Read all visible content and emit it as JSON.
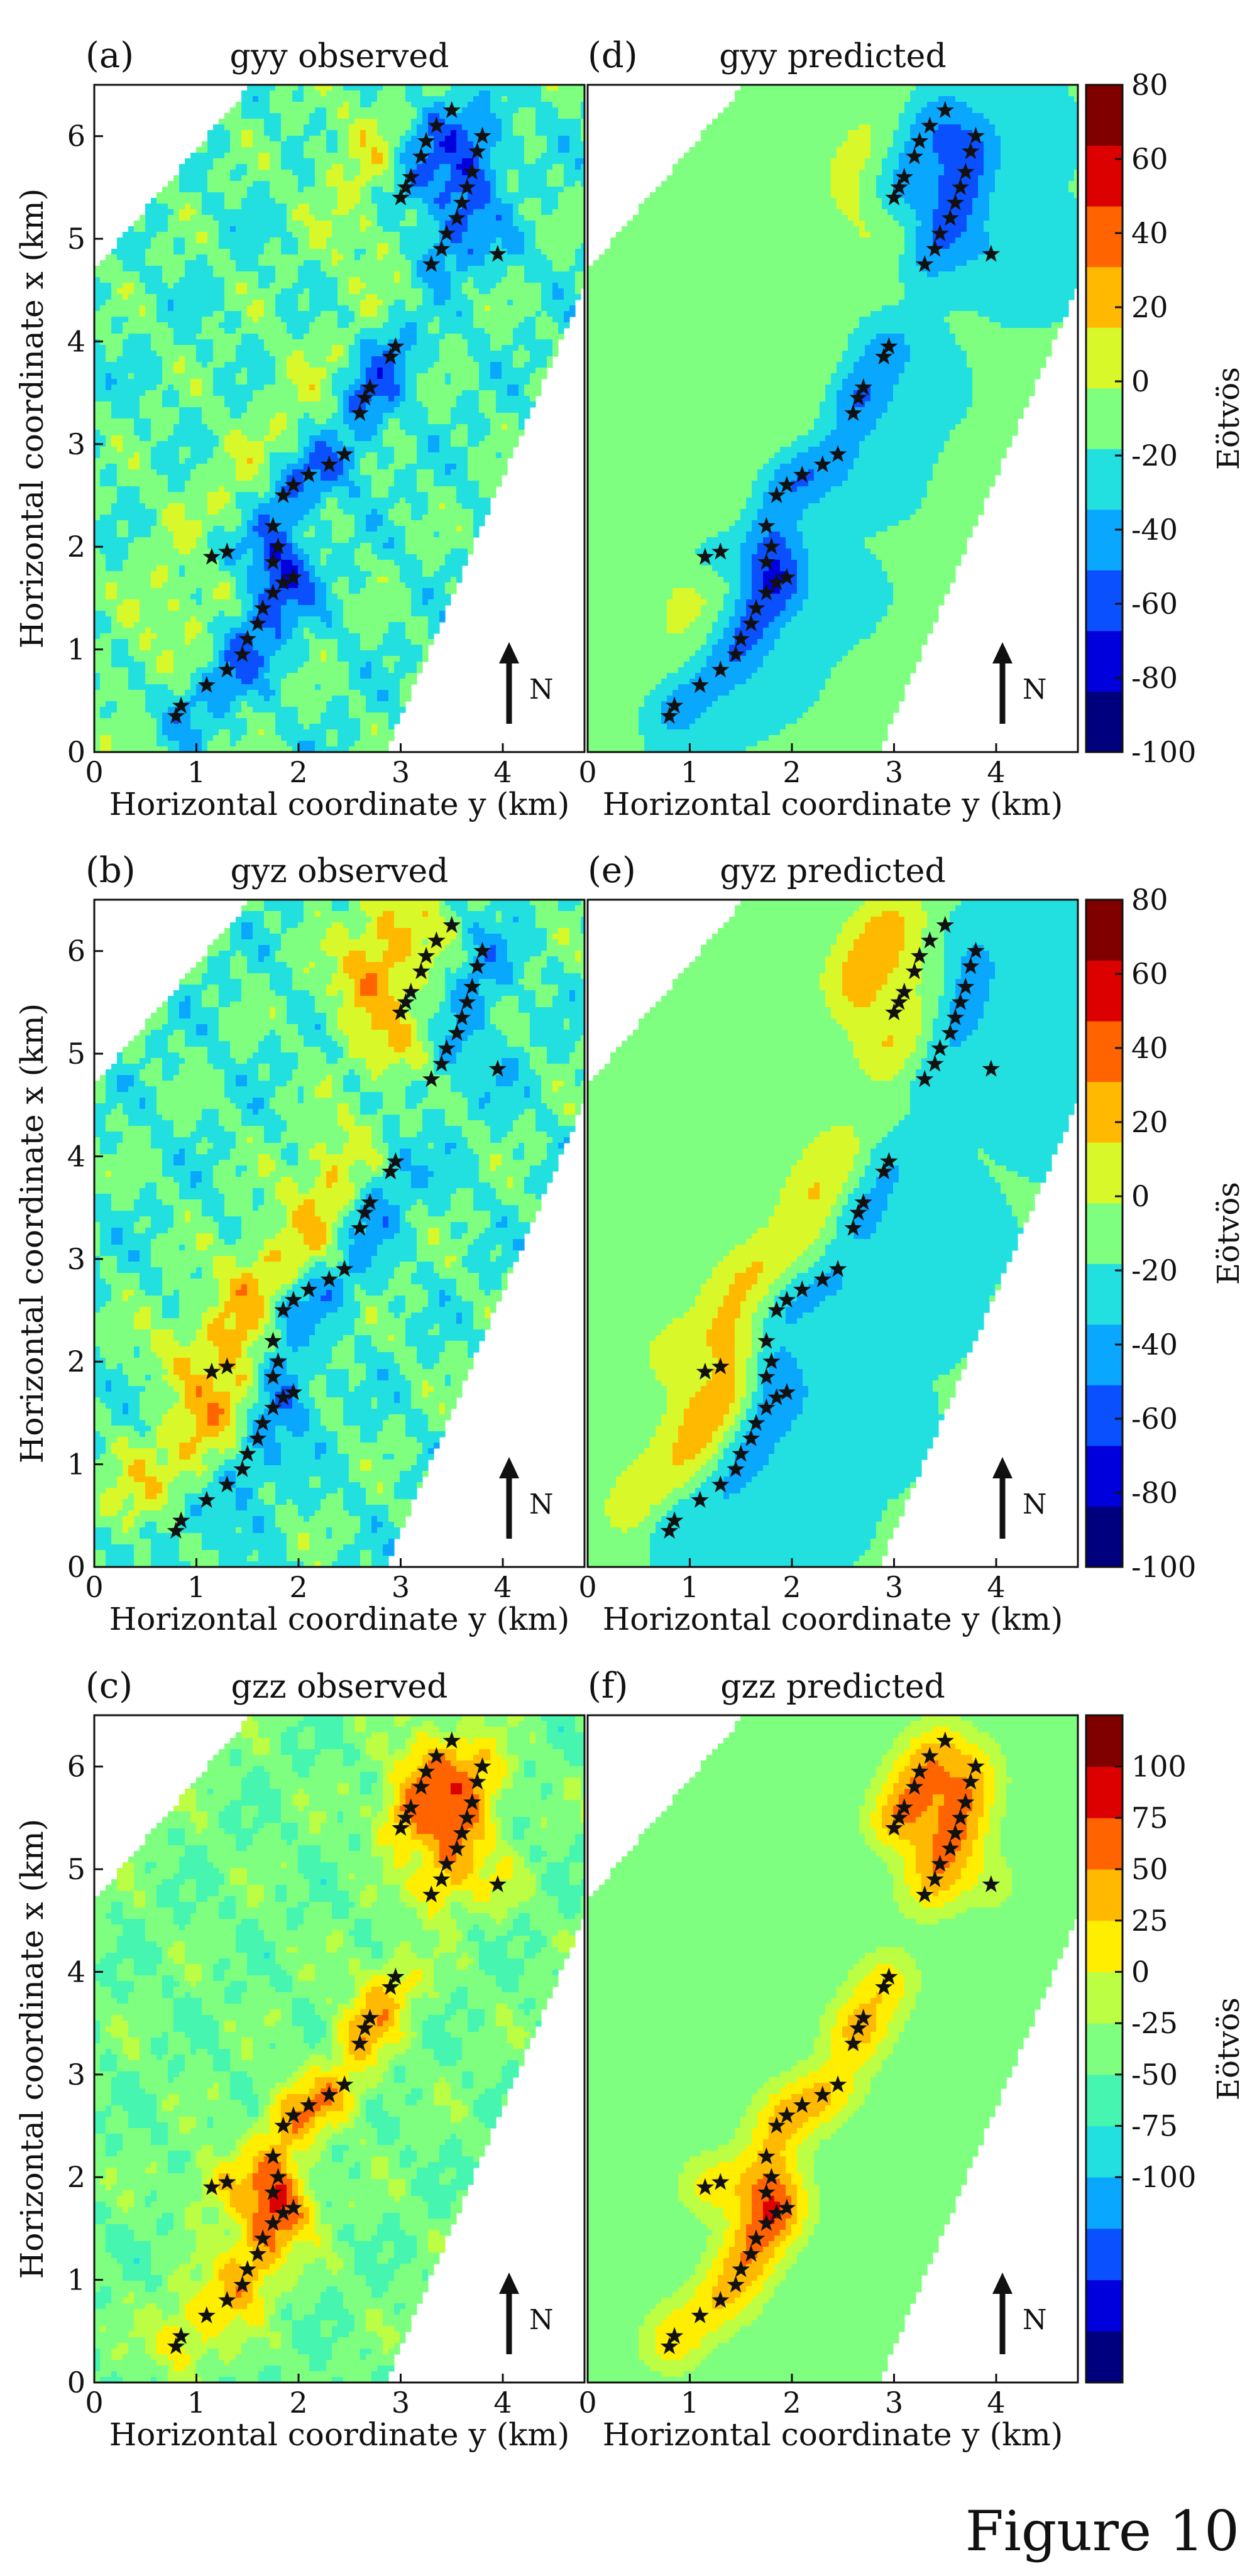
{
  "figure": {
    "caption": "Figure 10"
  },
  "colormaps": {
    "yy_yz": {
      "ticks": [
        "80",
        "60",
        "40",
        "20",
        "0",
        "-20",
        "-40",
        "-60",
        "-80",
        "-100"
      ],
      "label": "Eötvös",
      "colors": [
        "#00007f",
        "#0000dd",
        "#0a50ff",
        "#0aa7ff",
        "#22e0e0",
        "#7fff7f",
        "#d8f82a",
        "#ffb900",
        "#ff6400",
        "#dd0000",
        "#800000"
      ]
    },
    "zz": {
      "ticks": [
        "100",
        "75",
        "50",
        "25",
        "0",
        "-25",
        "-50",
        "-75",
        "-100"
      ],
      "label": "Eötvös",
      "colors": [
        "#00007f",
        "#0000dd",
        "#0a50ff",
        "#0aa7ff",
        "#22e0e0",
        "#45f5b0",
        "#7fff7f",
        "#bbfe44",
        "#ffee00",
        "#ffb900",
        "#ff6400",
        "#dd0000",
        "#800000"
      ]
    }
  },
  "chart_data": [
    {
      "type": "heatmap",
      "panel_label": "(a)",
      "title": "gyy observed",
      "xlabel": "Horizontal coordinate y (km)",
      "ylabel": "Horizontal coordinate x (km)",
      "xticks": [
        "0",
        "1",
        "2",
        "3",
        "4"
      ],
      "yticks": [
        "0",
        "1",
        "2",
        "3",
        "4",
        "5",
        "6"
      ],
      "xlim": [
        0,
        4.8
      ],
      "ylim": [
        0,
        6.5
      ],
      "north": "N",
      "colorbar": "yy_yz"
    },
    {
      "type": "heatmap",
      "panel_label": "(d)",
      "title": "gyy predicted",
      "xlabel": "Horizontal coordinate y (km)",
      "ylabel": "",
      "xticks": [
        "0",
        "1",
        "2",
        "3",
        "4"
      ],
      "yticks": [],
      "xlim": [
        0,
        4.8
      ],
      "ylim": [
        0,
        6.5
      ],
      "north": "N",
      "colorbar": "yy_yz"
    },
    {
      "type": "heatmap",
      "panel_label": "(b)",
      "title": "gyz observed",
      "xlabel": "Horizontal coordinate y (km)",
      "ylabel": "Horizontal coordinate x (km)",
      "xticks": [
        "0",
        "1",
        "2",
        "3",
        "4"
      ],
      "yticks": [
        "0",
        "1",
        "2",
        "3",
        "4",
        "5",
        "6"
      ],
      "xlim": [
        0,
        4.8
      ],
      "ylim": [
        0,
        6.5
      ],
      "north": "N",
      "colorbar": "yy_yz"
    },
    {
      "type": "heatmap",
      "panel_label": "(e)",
      "title": "gyz predicted",
      "xlabel": "Horizontal coordinate y (km)",
      "ylabel": "",
      "xticks": [
        "0",
        "1",
        "2",
        "3",
        "4"
      ],
      "yticks": [],
      "xlim": [
        0,
        4.8
      ],
      "ylim": [
        0,
        6.5
      ],
      "north": "N",
      "colorbar": "yy_yz"
    },
    {
      "type": "heatmap",
      "panel_label": "(c)",
      "title": "gzz observed",
      "xlabel": "Horizontal coordinate y (km)",
      "ylabel": "Horizontal coordinate x (km)",
      "xticks": [
        "0",
        "1",
        "2",
        "3",
        "4"
      ],
      "yticks": [
        "0",
        "1",
        "2",
        "3",
        "4",
        "5",
        "6"
      ],
      "xlim": [
        0,
        4.8
      ],
      "ylim": [
        0,
        6.5
      ],
      "north": "N",
      "colorbar": "zz"
    },
    {
      "type": "heatmap",
      "panel_label": "(f)",
      "title": "gzz predicted",
      "xlabel": "Horizontal coordinate y (km)",
      "ylabel": "",
      "xticks": [
        "0",
        "1",
        "2",
        "3",
        "4"
      ],
      "yticks": [],
      "xlim": [
        0,
        4.8
      ],
      "ylim": [
        0,
        6.5
      ],
      "north": "N",
      "colorbar": "zz"
    }
  ],
  "sources": {
    "points": [
      [
        0.8,
        0.35
      ],
      [
        0.85,
        0.45
      ],
      [
        1.1,
        0.65
      ],
      [
        1.3,
        0.8
      ],
      [
        1.45,
        0.95
      ],
      [
        1.5,
        1.1
      ],
      [
        1.6,
        1.25
      ],
      [
        1.65,
        1.4
      ],
      [
        1.75,
        1.55
      ],
      [
        1.85,
        1.65
      ],
      [
        1.95,
        1.7
      ],
      [
        1.75,
        1.85
      ],
      [
        1.8,
        2.0
      ],
      [
        1.75,
        2.2
      ],
      [
        1.85,
        2.5
      ],
      [
        1.95,
        2.6
      ],
      [
        2.1,
        2.7
      ],
      [
        2.3,
        2.8
      ],
      [
        2.45,
        2.9
      ],
      [
        2.6,
        3.3
      ],
      [
        2.65,
        3.45
      ],
      [
        2.7,
        3.55
      ],
      [
        2.9,
        3.85
      ],
      [
        2.95,
        3.95
      ],
      [
        1.15,
        1.9
      ],
      [
        1.3,
        1.95
      ],
      [
        3.0,
        5.4
      ],
      [
        3.05,
        5.5
      ],
      [
        3.1,
        5.6
      ],
      [
        3.2,
        5.8
      ],
      [
        3.25,
        5.95
      ],
      [
        3.35,
        6.1
      ],
      [
        3.5,
        6.25
      ],
      [
        3.3,
        4.75
      ],
      [
        3.4,
        4.9
      ],
      [
        3.45,
        5.05
      ],
      [
        3.55,
        5.2
      ],
      [
        3.6,
        5.35
      ],
      [
        3.65,
        5.5
      ],
      [
        3.7,
        5.65
      ],
      [
        3.75,
        5.85
      ],
      [
        3.8,
        6.0
      ],
      [
        3.95,
        4.85
      ]
    ]
  }
}
